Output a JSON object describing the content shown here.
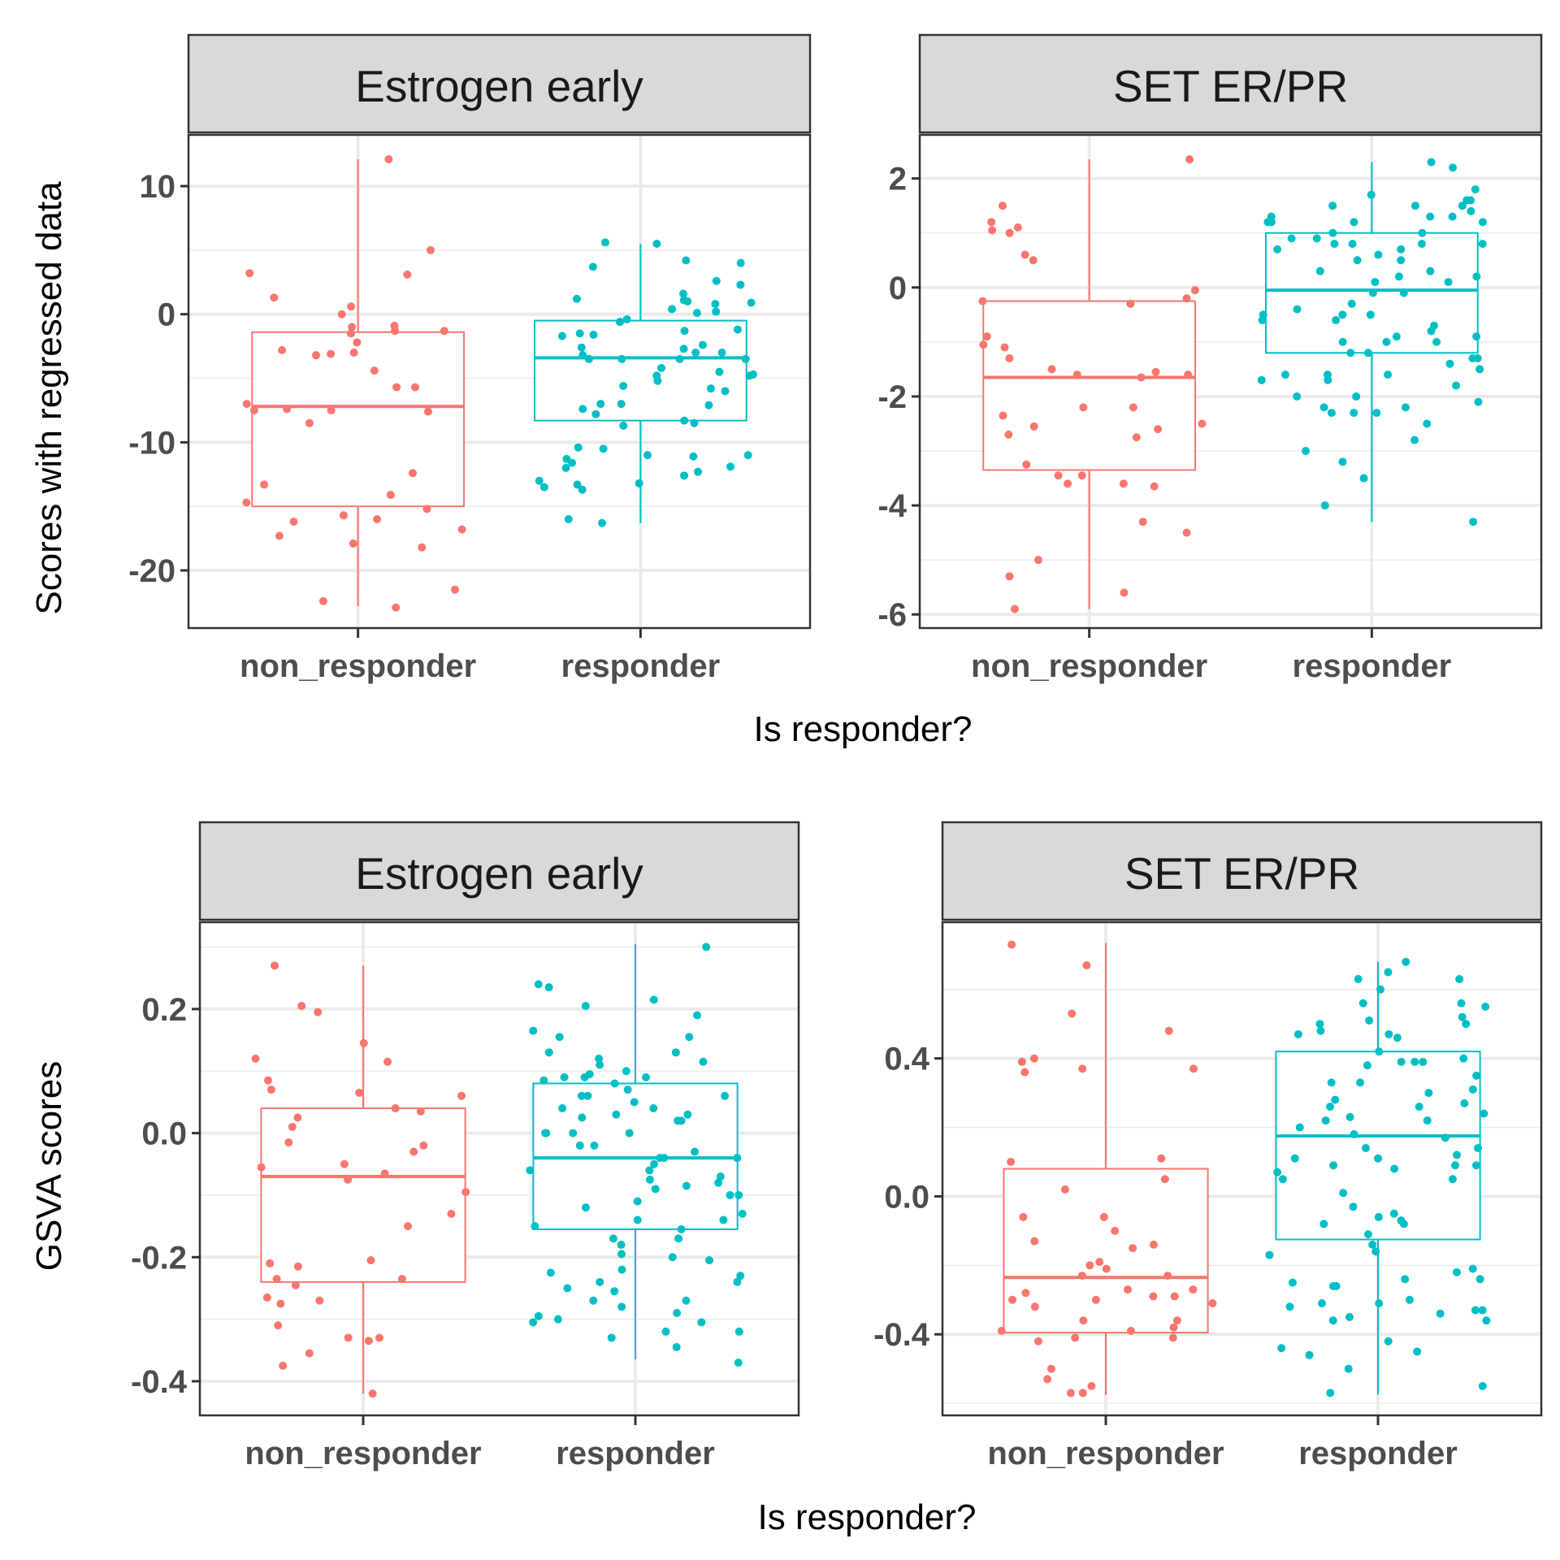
{
  "rows": [
    {
      "ylabel": "Scores with regressed data",
      "xlabel": "Is responder?",
      "panels": [
        {
          "strip": "Estrogen early",
          "ylim": [
            -24.5,
            14
          ],
          "yticks": [
            {
              "v": 10,
              "label": "10"
            },
            {
              "v": 0,
              "label": "0"
            },
            {
              "v": -10,
              "label": "-10"
            },
            {
              "v": -20,
              "label": "-20"
            }
          ],
          "minor_grid": [
            5,
            -5,
            -15
          ]
        },
        {
          "strip": "SET ER/PR",
          "ylim": [
            -6.25,
            2.8
          ],
          "yticks": [
            {
              "v": 2,
              "label": "2"
            },
            {
              "v": 0,
              "label": "0"
            },
            {
              "v": -2,
              "label": "-2"
            },
            {
              "v": -4,
              "label": "-4"
            },
            {
              "v": -6,
              "label": "-6"
            }
          ],
          "minor_grid": [
            1,
            -1,
            -3,
            -5
          ]
        }
      ]
    },
    {
      "ylabel": "GSVA scores",
      "xlabel": "Is responder?",
      "panels": [
        {
          "strip": "Estrogen early",
          "ylim": [
            -0.455,
            0.34
          ],
          "yticks": [
            {
              "v": 0.2,
              "label": "0.2"
            },
            {
              "v": 0.0,
              "label": "0.0"
            },
            {
              "v": -0.2,
              "label": "-0.2"
            },
            {
              "v": -0.4,
              "label": "-0.4"
            }
          ],
          "minor_grid": [
            0.3,
            0.1,
            -0.1,
            -0.3
          ]
        },
        {
          "strip": "SET ER/PR",
          "ylim": [
            -0.635,
            0.795
          ],
          "yticks": [
            {
              "v": 0.4,
              "label": "0.4"
            },
            {
              "v": 0.0,
              "label": "0.0"
            },
            {
              "v": -0.4,
              "label": "-0.4"
            }
          ],
          "minor_grid": [
            0.6,
            0.2,
            -0.2,
            -0.6
          ]
        }
      ]
    }
  ],
  "chart_data": [
    {
      "type": "box",
      "strip": "Estrogen early",
      "ylabel": "Scores with regressed data",
      "xlabel": "Is responder?",
      "categories": [
        "non_responder",
        "responder"
      ],
      "colors": [
        "#F8766D",
        "#00BFC4"
      ],
      "ylim": [
        -24.5,
        14
      ],
      "boxes": [
        {
          "group": "non_responder",
          "min": -22.8,
          "q1": -15.0,
          "median": -7.2,
          "q3": -1.4,
          "max": 12.1
        },
        {
          "group": "responder",
          "min": -16.3,
          "q1": -8.3,
          "median": -3.4,
          "q3": -0.5,
          "max": 5.5
        }
      ],
      "points": [
        [
          -1.3,
          -1.5,
          0.0,
          3.2,
          -2.8,
          -3.2,
          -3.0,
          -5.7,
          -7.5,
          -8.5,
          -12.4,
          -16.2,
          -16.0,
          -17.9,
          -22.4,
          -22.9,
          12.1,
          -7.4,
          -14.7,
          -14.1,
          -16.8,
          -4.4,
          -7.5,
          -7.6,
          -7.0,
          -1.0,
          -0.9,
          -1.3,
          -2.2,
          3.1,
          5.0,
          -13.3,
          -15.2,
          -18.2,
          -17.3,
          -21.5,
          0.6,
          1.3,
          -3.1,
          -5.7,
          -15.7
        ],
        [
          4.2,
          3.7,
          1.2,
          0.9,
          5.6,
          -2.7,
          -3.5,
          -5.2,
          -7.0,
          -8.5,
          -11.0,
          -11.3,
          -12.3,
          -16.0,
          -16.3,
          0.4,
          -0.4,
          -0.6,
          -3.0,
          -3.5,
          -4.5,
          -4.2,
          -11.0,
          -13.2,
          -13.3,
          -11.6,
          -13.0,
          2.3,
          1.1,
          1.0,
          -5.8,
          -7.0,
          -7.4,
          -8.3,
          -3.5,
          -4.8,
          -13.5,
          -13.7,
          -11.1,
          -10.4,
          5.5,
          0.2,
          0.1,
          -1.5,
          -1.7,
          -2.6,
          -3.0,
          -4.8,
          -6.0,
          -7.1,
          -10.5,
          -11.9,
          -12.6,
          -8.7,
          4.0,
          2.6,
          1.6,
          0.8,
          -1.2,
          -1.6,
          -2.4,
          -3.5,
          -4.7,
          -5.6,
          -7.8,
          -12.0,
          -1.3,
          -3.2
        ]
      ]
    },
    {
      "type": "box",
      "strip": "SET ER/PR",
      "ylabel": "Scores with regressed data",
      "xlabel": "Is responder?",
      "categories": [
        "non_responder",
        "responder"
      ],
      "colors": [
        "#F8766D",
        "#00BFC4"
      ],
      "ylim": [
        -6.25,
        2.8
      ],
      "boxes": [
        {
          "group": "non_responder",
          "min": -5.9,
          "q1": -3.35,
          "median": -1.65,
          "q3": -0.25,
          "max": 2.35
        },
        {
          "group": "responder",
          "min": -4.3,
          "q1": -1.2,
          "median": -0.05,
          "q3": 1.0,
          "max": 2.3
        }
      ],
      "points": [
        [
          2.35,
          1.5,
          1.2,
          1.05,
          1.0,
          0.5,
          -0.25,
          -0.3,
          -1.65,
          -2.35,
          -2.2,
          -2.2,
          -2.5,
          -2.55,
          -2.75,
          -3.45,
          -3.45,
          -5.3,
          -5.0,
          -0.05,
          -1.05,
          -1.1,
          -1.3,
          -1.6,
          -2.6,
          -3.25,
          -0.2,
          -0.9,
          -1.55,
          -1.6,
          -3.6,
          -4.5,
          -5.9,
          -5.6,
          1.1,
          0.6,
          -1.5,
          -2.7,
          -3.6,
          -3.65,
          -4.3
        ],
        [
          2.3,
          1.6,
          1.3,
          1.2,
          1.0,
          0.5,
          0.2,
          -0.1,
          -0.8,
          -1.6,
          -1.2,
          -2.0,
          -2.0,
          1.8,
          1.5,
          0.8,
          0.3,
          -0.5,
          -1.7,
          -2.2,
          1.6,
          0.9,
          0.7,
          0.2,
          -0.6,
          -1.3,
          -2.3,
          1.5,
          1.2,
          0.5,
          -0.1,
          -0.4,
          -0.9,
          -1.0,
          -1.6,
          2.2,
          1.4,
          0.9,
          0.3,
          -0.6,
          -1.8,
          -2.2,
          1.7,
          1.2,
          0.6,
          0.1,
          -0.7,
          -1.5,
          -3.5,
          -2.5,
          -3.0,
          1.3,
          0.7,
          -0.3,
          -0.9,
          -1.2,
          -2.3,
          -3.2,
          -4.3,
          1.5,
          1.0,
          0.8,
          0.1,
          -1.4,
          -2.3,
          -2.1,
          -4.0,
          1.3,
          -0.5,
          -1.0,
          -1.7,
          -2.8,
          1.2,
          0.8,
          -1.3,
          -1.0,
          -0.5,
          0.8,
          -1.6
        ]
      ]
    },
    {
      "type": "box",
      "strip": "Estrogen early",
      "ylabel": "GSVA scores",
      "xlabel": "Is responder?",
      "categories": [
        "non_responder",
        "responder"
      ],
      "colors": [
        "#F8766D",
        "#00BFC4"
      ],
      "ylim": [
        -0.455,
        0.34
      ],
      "boxes": [
        {
          "group": "non_responder",
          "min": -0.42,
          "q1": -0.24,
          "median": -0.07,
          "q3": 0.04,
          "max": 0.27
        },
        {
          "group": "responder",
          "min": -0.365,
          "q1": -0.155,
          "median": -0.04,
          "q3": 0.08,
          "max": 0.305
        }
      ],
      "points": [
        [
          0.12,
          0.035,
          -0.15,
          -0.275,
          -0.375,
          -0.245,
          -0.33,
          0.115,
          0.07,
          0.06,
          0.04,
          -0.03,
          -0.05,
          -0.055,
          -0.21,
          -0.265,
          -0.27,
          -0.31,
          -0.42,
          0.195,
          -0.235,
          -0.235,
          -0.355,
          0.085,
          -0.065,
          -0.095,
          -0.215,
          -0.33,
          0.27,
          0.01,
          0.065,
          -0.02,
          -0.205,
          -0.335,
          0.205,
          0.145,
          0.025,
          -0.015,
          -0.075,
          -0.13
        ],
        [
          0.3,
          0.215,
          0.05,
          0.0,
          -0.02,
          -0.075,
          -0.14,
          -0.18,
          -0.225,
          -0.255,
          -0.28,
          -0.345,
          0.04,
          -0.085,
          -0.295,
          0.165,
          0.13,
          0.12,
          0.06,
          -0.04,
          -0.13,
          -0.17,
          -0.25,
          0.155,
          0.115,
          0.02,
          -0.09,
          -0.155,
          0.095,
          0.04,
          0.0,
          -0.06,
          -0.1,
          -0.195,
          -0.24,
          -0.3,
          -0.305,
          0.205,
          0.19,
          0.1,
          0.09,
          0.07,
          -0.02,
          -0.08,
          -0.14,
          -0.22,
          -0.29,
          -0.37,
          0.24,
          0.13,
          0.085,
          0.0,
          -0.06,
          -0.17,
          -0.23,
          -0.32,
          0.155,
          0.06,
          -0.04,
          -0.11,
          -0.2,
          -0.27,
          -0.305,
          0.09,
          0.03,
          -0.03,
          -0.07,
          -0.12,
          -0.205,
          -0.33,
          0.08,
          0.02,
          -0.04,
          -0.1,
          -0.15,
          -0.27,
          -0.32,
          0.11,
          0.09,
          0.06,
          0.03,
          0.0,
          -0.05,
          0.235,
          0.025,
          -0.24
        ]
      ]
    },
    {
      "type": "box",
      "strip": "SET ER/PR",
      "ylabel": "GSVA scores",
      "xlabel": "Is responder?",
      "categories": [
        "non_responder",
        "responder"
      ],
      "colors": [
        "#F8766D",
        "#00BFC4"
      ],
      "ylim": [
        -0.635,
        0.795
      ],
      "boxes": [
        {
          "group": "non_responder",
          "min": -0.575,
          "q1": -0.395,
          "median": -0.235,
          "q3": 0.08,
          "max": 0.735
        },
        {
          "group": "responder",
          "min": -0.575,
          "q1": -0.125,
          "median": 0.175,
          "q3": 0.42,
          "max": 0.68
        }
      ],
      "points": [
        [
          0.73,
          0.67,
          0.53,
          0.4,
          0.39,
          0.36,
          -0.06,
          -0.1,
          -0.2,
          -0.23,
          -0.27,
          -0.31,
          -0.36,
          -0.41,
          -0.55,
          0.11,
          -0.28,
          -0.3,
          -0.38,
          -0.39,
          -0.32,
          -0.53,
          -0.41,
          -0.42,
          -0.57,
          -0.14,
          -0.19,
          -0.29,
          0.37,
          0.37,
          0.02,
          -0.15,
          -0.27,
          -0.36,
          -0.5,
          0.48,
          0.1,
          -0.13,
          -0.3,
          -0.39,
          -0.57,
          0.05,
          -0.06,
          -0.21,
          -0.23,
          -0.29
        ],
        [
          0.52,
          0.5,
          0.47,
          0.2,
          0.09,
          -0.31,
          -0.44,
          -0.5,
          0.51,
          0.48,
          0.18,
          -0.33,
          -0.36,
          0.6,
          0.33,
          0.22,
          -0.21,
          -0.26,
          0.47,
          0.31,
          0.05,
          -0.08,
          -0.36,
          0.63,
          0.39,
          0.14,
          -0.22,
          -0.32,
          0.46,
          0.4,
          0.28,
          0.12,
          0.01,
          -0.26,
          -0.35,
          0.56,
          0.39,
          0.33,
          0.17,
          0.08,
          -0.14,
          -0.57,
          0.55,
          0.39,
          0.26,
          0.07,
          -0.07,
          -0.24,
          -0.3,
          0.68,
          0.35,
          0.23,
          0.11,
          -0.03,
          -0.17,
          -0.42,
          0.56,
          0.38,
          0.24,
          0.11,
          -0.08,
          -0.24,
          0.65,
          0.26,
          0.14,
          -0.05,
          -0.16,
          -0.34,
          -0.46,
          0.63,
          0.42,
          0.3,
          0.05,
          -0.11,
          -0.25,
          -0.45,
          0.22,
          0.09,
          -0.33,
          -0.06,
          0.27,
          0.09,
          -0.31,
          -0.55,
          0.5
        ]
      ]
    }
  ]
}
